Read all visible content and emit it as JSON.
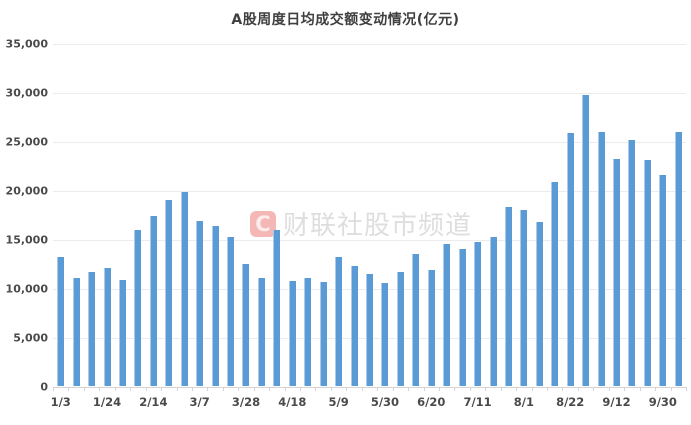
{
  "watermark": {
    "logo_letter": "C",
    "text": "财联社股市频道"
  },
  "colors": {
    "bar": "#5B9BD5",
    "bar_edge": "#AACBEA",
    "gridline": "#ECECEC",
    "axis": "#D4D4D4",
    "title_text": "#3F3F3F",
    "tick_text": "#4A4A4A",
    "watermark_logo_bg": "#F5B6B6",
    "watermark_text": "#DEDEDE"
  },
  "chart_data": {
    "type": "bar",
    "title": "A股周度日均成交额变动情况(亿元)",
    "xlabel": "",
    "ylabel": "",
    "ylim": [
      0,
      35000
    ],
    "grid": true,
    "legend": "none",
    "y_ticks": [
      0,
      5000,
      10000,
      15000,
      20000,
      25000,
      30000,
      35000
    ],
    "y_tick_labels": [
      "0",
      "5,000",
      "10,000",
      "15,000",
      "20,000",
      "25,000",
      "30,000",
      "35,000"
    ],
    "x_tick_labels": [
      "1/3",
      "1/24",
      "2/14",
      "3/7",
      "3/28",
      "4/18",
      "5/9",
      "5/30",
      "6/20",
      "7/11",
      "8/1",
      "8/22",
      "9/12",
      "9/30"
    ],
    "label_every_n_bars": 3,
    "values": [
      13200,
      11100,
      11700,
      12100,
      10900,
      16000,
      17400,
      19100,
      19900,
      16900,
      16400,
      15300,
      12500,
      11100,
      16000,
      10800,
      11100,
      10700,
      13200,
      12300,
      11500,
      10600,
      11700,
      13500,
      11900,
      14600,
      14100,
      14800,
      15300,
      18300,
      18000,
      16800,
      20900,
      25900,
      29800,
      26000,
      23200,
      25200,
      23100,
      21600,
      26000
    ]
  }
}
